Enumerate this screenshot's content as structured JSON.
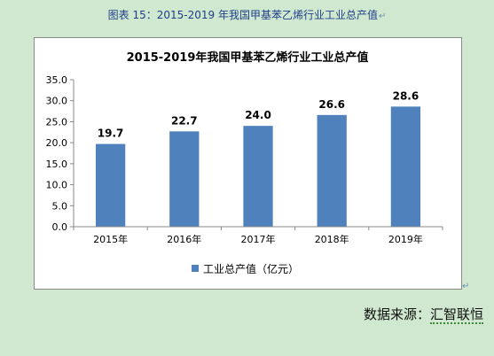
{
  "caption": "图表 15：2015-2019 年我国甲基苯乙烯行业工业总产值",
  "caption_mark": "↵",
  "frame_mark": "↵",
  "source": {
    "label": "数据来源：",
    "name": "汇智联恒",
    "mark": "↵"
  },
  "colors": {
    "bar": "#4f81bd",
    "background": "#cfe8cf"
  },
  "chart_data": {
    "type": "bar",
    "title": "2015-2019年我国甲基苯乙烯行业工业总产值",
    "categories": [
      "2015年",
      "2016年",
      "2017年",
      "2018年",
      "2019年"
    ],
    "series": [
      {
        "name": "工业总产值（亿元）",
        "values": [
          19.7,
          22.7,
          24.0,
          26.6,
          28.6
        ]
      }
    ],
    "value_labels": [
      "19.7",
      "22.7",
      "24.0",
      "26.6",
      "28.6"
    ],
    "ylim": [
      0,
      35
    ],
    "yticks": [
      "0.0",
      "5.0",
      "10.0",
      "15.0",
      "20.0",
      "25.0",
      "30.0",
      "35.0"
    ],
    "xlabel": "",
    "ylabel": "",
    "legend_position": "bottom",
    "grid": false
  }
}
